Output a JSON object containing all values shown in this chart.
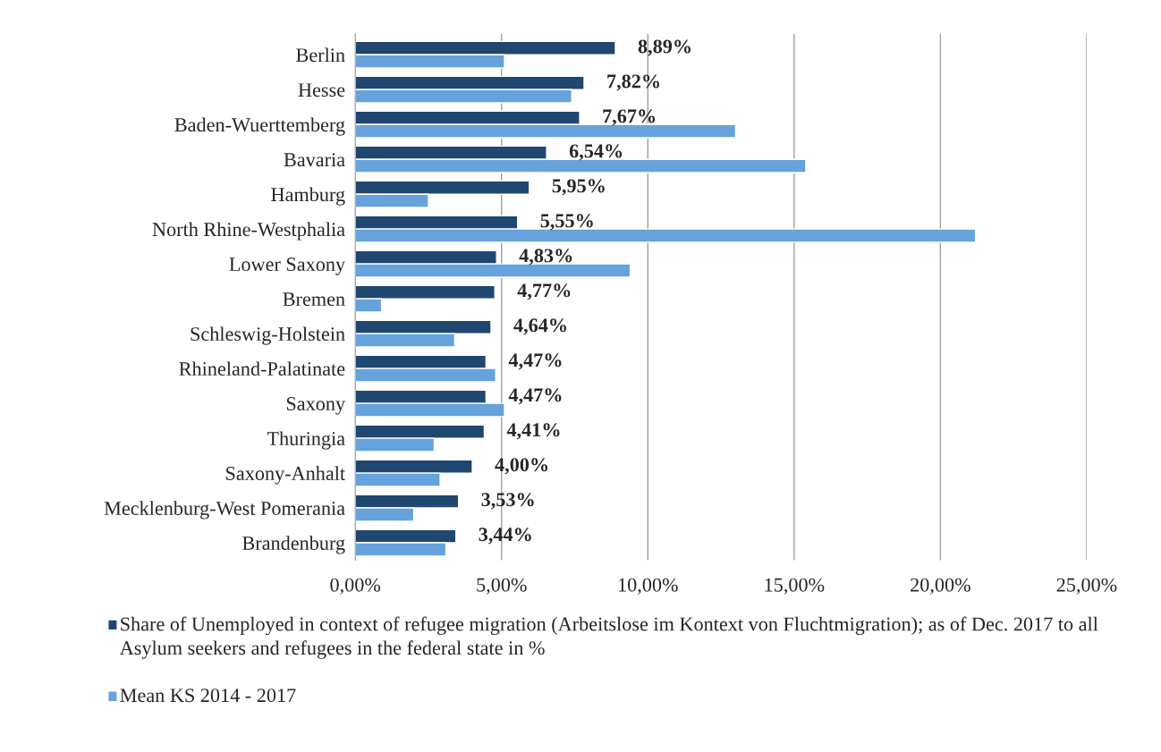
{
  "chart_data": {
    "type": "bar",
    "orientation": "horizontal",
    "categories": [
      "Berlin",
      "Hesse",
      "Baden-Wuerttemberg",
      "Bavaria",
      "Hamburg",
      "North Rhine-Westphalia",
      "Lower Saxony",
      "Bremen",
      "Schleswig-Holstein",
      "Rhineland-Palatinate",
      "Saxony",
      "Thuringia",
      "Saxony-Anhalt",
      "Mecklenburg-West Pomerania",
      "Brandenburg"
    ],
    "series": [
      {
        "name": "Share of Unemployed in context of refugee migration (Arbeitslose im Kontext von Fluchtmigration); as of Dec. 2017 to all Asylum seekers and refugees in the federal state in %",
        "color": "#1f4770",
        "values": [
          8.89,
          7.82,
          7.67,
          6.54,
          5.95,
          5.55,
          4.83,
          4.77,
          4.64,
          4.47,
          4.47,
          4.41,
          4.0,
          3.53,
          3.44
        ],
        "value_labels": [
          "8,89%",
          "7,82%",
          "7,67%",
          "6,54%",
          "5,95%",
          "5,55%",
          "4,83%",
          "4,77%",
          "4,64%",
          "4,47%",
          "4,47%",
          "4,41%",
          "4,00%",
          "3,53%",
          "3,44%"
        ]
      },
      {
        "name": "Mean KS 2014 - 2017",
        "color": "#66a2dc",
        "values": [
          5.1,
          7.4,
          13.0,
          15.4,
          2.5,
          21.2,
          9.4,
          0.9,
          3.4,
          4.8,
          5.1,
          2.7,
          2.9,
          2.0,
          3.1
        ]
      }
    ],
    "xlim": [
      0,
      25
    ],
    "xticks": [
      {
        "value": 0,
        "label": "0,00%"
      },
      {
        "value": 5,
        "label": "5,00%"
      },
      {
        "value": 10,
        "label": "10,00%"
      },
      {
        "value": 15,
        "label": "15,00%"
      },
      {
        "value": 20,
        "label": "20,00%"
      },
      {
        "value": 25,
        "label": "25,00%"
      }
    ],
    "grid": "x",
    "legend": "bottom"
  }
}
